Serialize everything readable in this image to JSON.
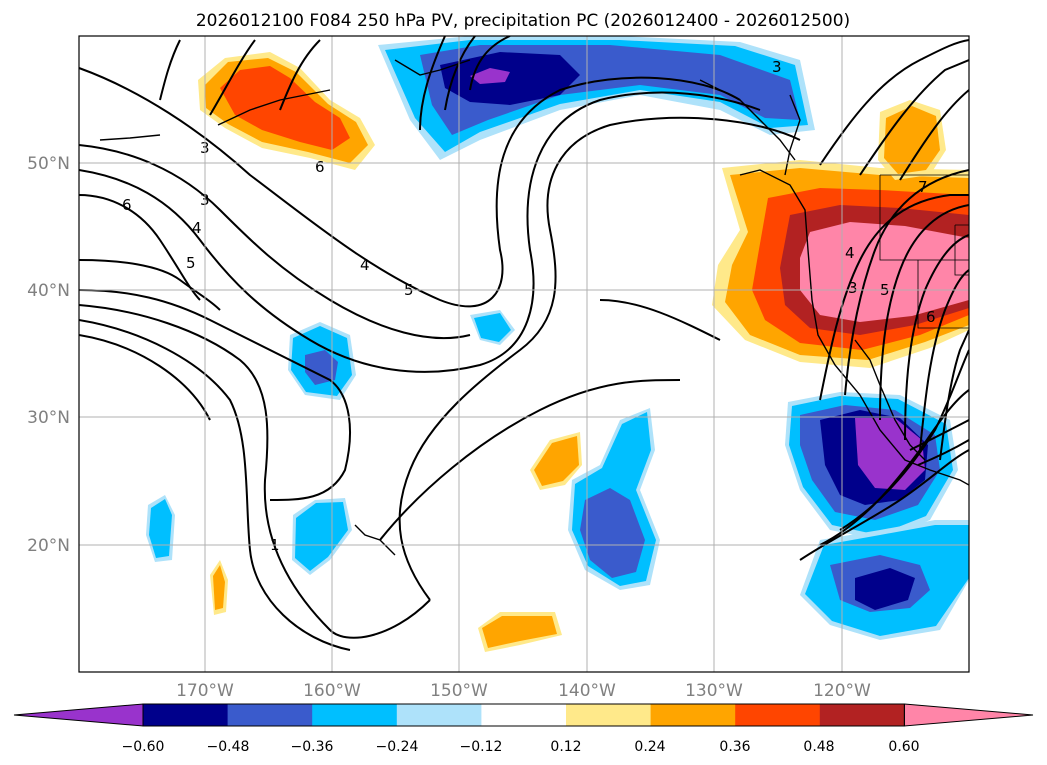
{
  "title": "2026012100 F084 250 hPa PV, precipitation PC (2026012400 - 2026012500)",
  "axes": {
    "lat_labels": [
      "50°N",
      "40°N",
      "30°N",
      "20°N"
    ],
    "lon_labels": [
      "170°W",
      "160°W",
      "150°W",
      "140°W",
      "130°W",
      "120°W"
    ],
    "tick_color": "#808080",
    "grid_color": "#b0b0b0"
  },
  "contour_labels": [
    "3",
    "6",
    "6",
    "3",
    "4",
    "5",
    "4",
    "5",
    "1",
    "3",
    "4",
    "3",
    "5",
    "6",
    "7"
  ],
  "colorbar": {
    "ticks": [
      "−0.60",
      "−0.48",
      "−0.36",
      "−0.24",
      "−0.12",
      "0.12",
      "0.24",
      "0.36",
      "0.48",
      "0.60"
    ],
    "colors": [
      "#9933cc",
      "#00008b",
      "#3a5bcc",
      "#00bfff",
      "#aee2fa",
      "#ffffff",
      "#ffe98a",
      "#ffa500",
      "#ff4500",
      "#b22222",
      "#ff85a8"
    ]
  }
}
